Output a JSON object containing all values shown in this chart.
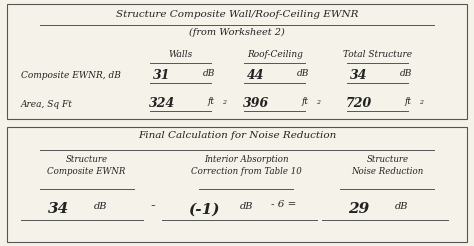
{
  "title1": "Structure Composite Wall/Roof-Ceiling EWNR",
  "subtitle1": "(from Worksheet 2)",
  "col_headers": [
    "Walls",
    "Roof-Ceiling",
    "Total Structure"
  ],
  "row_labels": [
    "Composite EWNR, dB",
    "Area, Sq Ft"
  ],
  "ewnr_values": [
    "31",
    "44",
    "34"
  ],
  "ewnr_unit": "dB",
  "area_values": [
    "324",
    "396",
    "720"
  ],
  "area_unit": "ft",
  "title2": "Final Calculation for Noise Reduction",
  "col2_headers": [
    "Structure\nComposite EWNR",
    "Interior Absorption\nCorrection from Table 10",
    "Structure\nNoise Reduction"
  ],
  "val_ewnr": "34",
  "val_correction": "(-1)",
  "val_result": "29",
  "minus6": "- 6 =",
  "unit_db": "dB",
  "bg_color": "#f5f2ea",
  "text_color": "#222222",
  "handwritten_color": "#222222"
}
